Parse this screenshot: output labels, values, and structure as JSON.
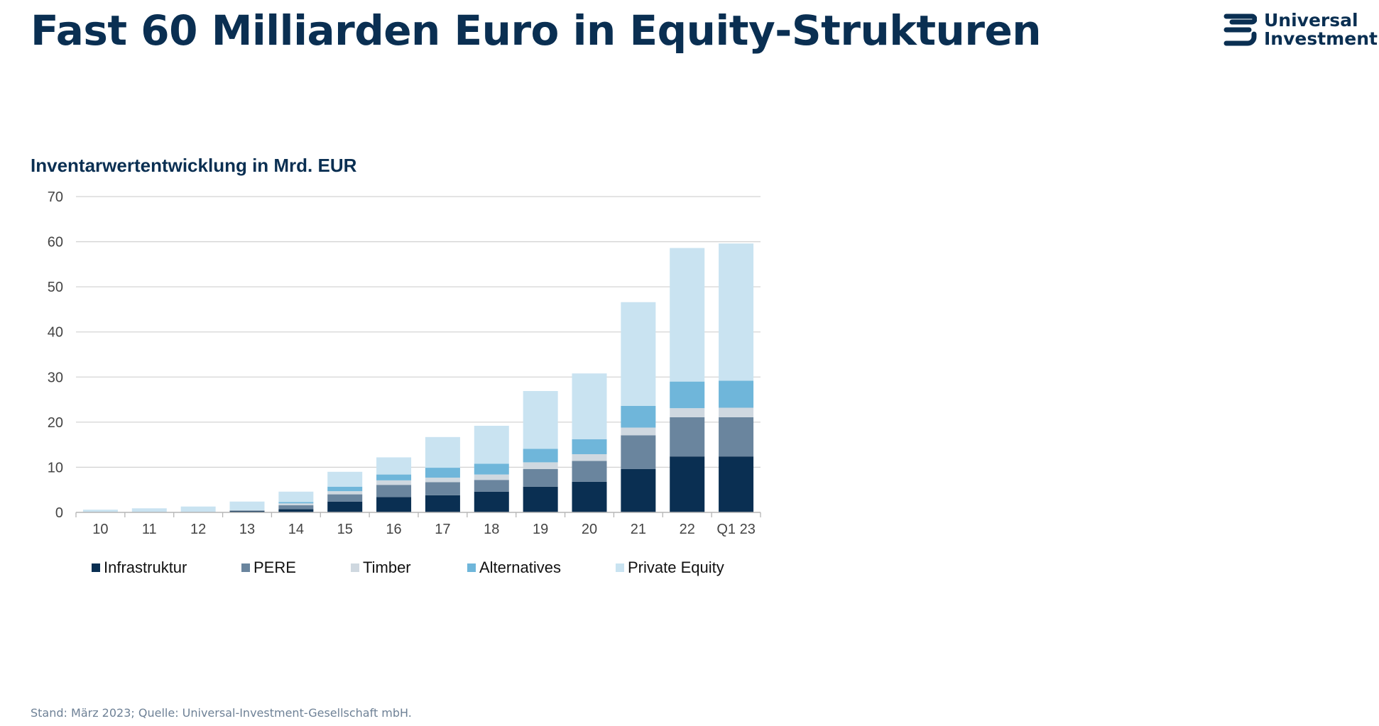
{
  "page": {
    "title": "Fast 60 Milliarden Euro in Equity-Strukturen",
    "source": "Stand: März 2023; Quelle: Universal-Investment-Gesellschaft mbH."
  },
  "logo": {
    "line1": "Universal",
    "line2": "Investment",
    "icon": "universal-investment-logo-mark",
    "color": "#0a2f52"
  },
  "chart_data": {
    "type": "bar",
    "stacked": true,
    "title": "Inventarwertentwicklung in Mrd. EUR",
    "xlabel": "",
    "ylabel": "",
    "ylim": [
      0,
      70
    ],
    "yticks": [
      0,
      10,
      20,
      30,
      40,
      50,
      60,
      70
    ],
    "grid": true,
    "legend_position": "bottom",
    "categories": [
      "10",
      "11",
      "12",
      "13",
      "14",
      "15",
      "16",
      "17",
      "18",
      "19",
      "20",
      "21",
      "22",
      "Q1 23"
    ],
    "series": [
      {
        "name": "Infrastruktur",
        "color": "#0a2f52",
        "values": [
          0,
          0,
          0,
          0.3,
          0.7,
          2.4,
          3.4,
          3.8,
          4.6,
          5.7,
          6.8,
          9.6,
          12.4,
          12.4
        ]
      },
      {
        "name": "PERE",
        "color": "#6a859e",
        "values": [
          0,
          0,
          0,
          0.1,
          0.9,
          1.6,
          2.7,
          2.9,
          2.6,
          3.9,
          4.6,
          7.5,
          8.7,
          8.7
        ]
      },
      {
        "name": "Timber",
        "color": "#cfd8e0",
        "values": [
          0,
          0,
          0,
          0.1,
          0.4,
          0.7,
          1.0,
          1.0,
          1.2,
          1.5,
          1.5,
          1.7,
          2.0,
          2.1
        ]
      },
      {
        "name": "Alternatives",
        "color": "#6fb6da",
        "values": [
          0,
          0,
          0,
          0,
          0.3,
          1.0,
          1.3,
          2.2,
          2.4,
          3.0,
          3.3,
          4.8,
          5.9,
          6.0
        ]
      },
      {
        "name": "Private Equity",
        "color": "#c9e3f1",
        "values": [
          0.6,
          0.9,
          1.3,
          1.9,
          2.3,
          3.3,
          3.8,
          6.8,
          8.4,
          12.8,
          14.6,
          23.0,
          29.6,
          30.4
        ]
      }
    ]
  }
}
